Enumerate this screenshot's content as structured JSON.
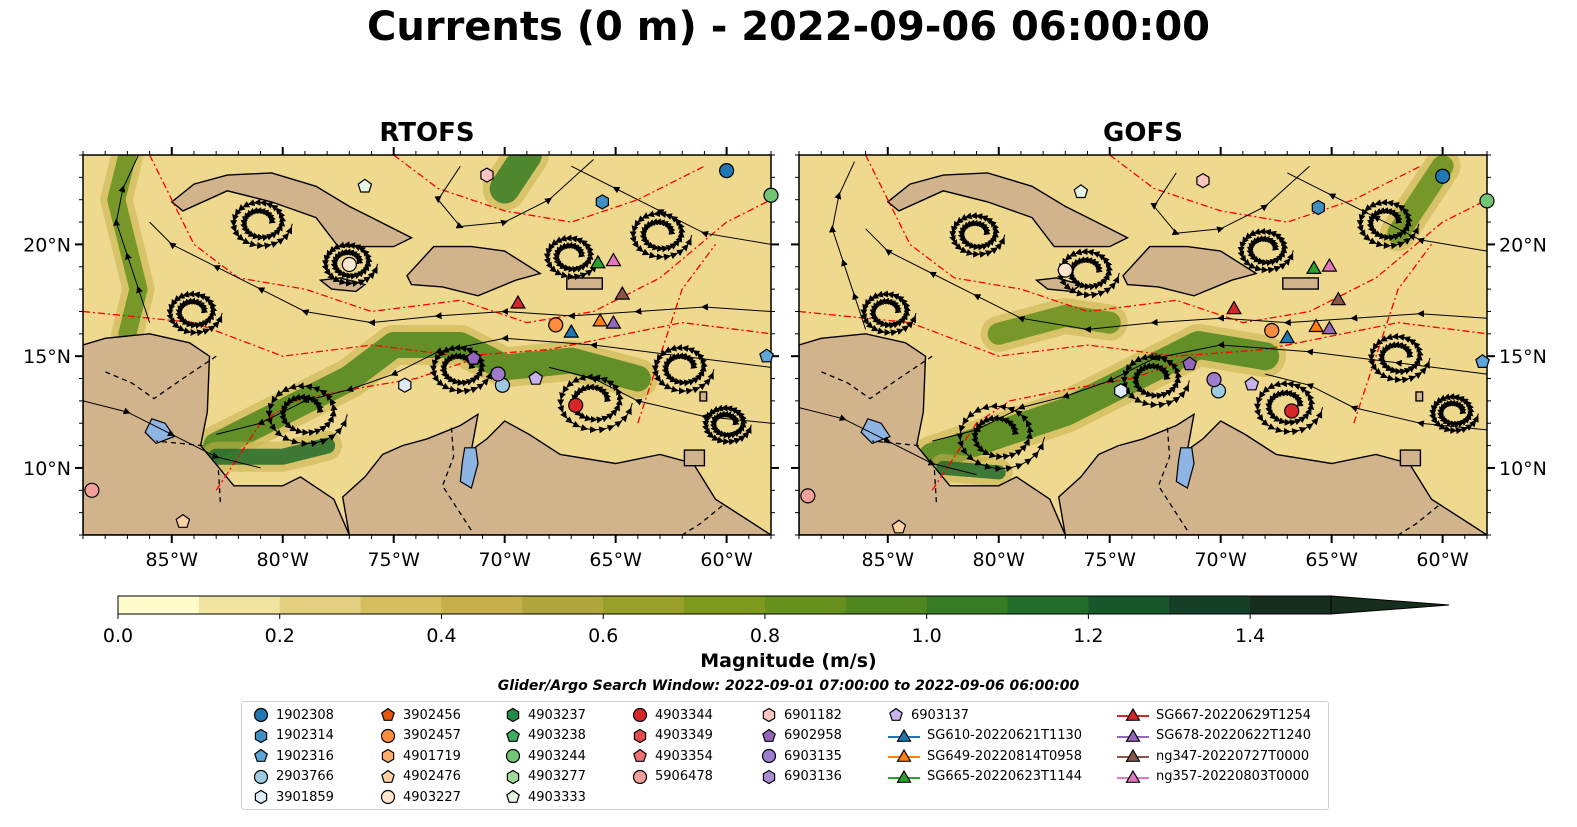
{
  "figure": {
    "suptitle": "Currents (0 m) - 2022-09-06 06:00:00",
    "search_window": "Glider/Argo Search Window: 2022-09-01 07:00:00 to 2022-09-06 06:00:00"
  },
  "panels": [
    {
      "id": "rtofs",
      "title": "RTOFS"
    },
    {
      "id": "gofs",
      "title": "GOFS"
    }
  ],
  "map": {
    "extent": {
      "lon": [
        -89,
        -58
      ],
      "lat": [
        7,
        24
      ]
    },
    "lon_ticks": [
      "85°W",
      "80°W",
      "75°W",
      "70°W",
      "65°W",
      "60°W"
    ],
    "lat_ticks": [
      "20°N",
      "15°N",
      "10°N"
    ],
    "colors": {
      "land": "#d2b48c",
      "lakes": "#8eb4e3",
      "eez": "#ff0000",
      "borders": "#000000"
    }
  },
  "colorbar": {
    "label": "Magnitude (m/s)",
    "range": [
      0,
      1.5
    ],
    "extend": "max",
    "tick_labels": [
      "0.0",
      "0.2",
      "0.4",
      "0.6",
      "0.8",
      "1.0",
      "1.2",
      "1.4"
    ],
    "colors": [
      "#fefccb",
      "#f1e4a0",
      "#e1ce7e",
      "#d5be5e",
      "#c6b04a",
      "#b0a43c",
      "#98a029",
      "#7d9a1c",
      "#66911d",
      "#4f861f",
      "#377b25",
      "#226b2b",
      "#17572b",
      "#153f27",
      "#172d1e"
    ]
  },
  "legend": {
    "columns": [
      [
        {
          "label": "1902308",
          "marker": "circle",
          "color": "#1f77b4"
        },
        {
          "label": "1902314",
          "marker": "hexagon",
          "color": "#3f8fc4"
        },
        {
          "label": "1902316",
          "marker": "pentagon",
          "color": "#5ea5d8"
        },
        {
          "label": "2903766",
          "marker": "circle",
          "color": "#9ecae1"
        },
        {
          "label": "3901859",
          "marker": "hexagon",
          "color": "#deebf7"
        }
      ],
      [
        {
          "label": "3902456",
          "marker": "pentagon",
          "color": "#e6550d"
        },
        {
          "label": "3902457",
          "marker": "circle",
          "color": "#fd8d3c"
        },
        {
          "label": "4901719",
          "marker": "hexagon",
          "color": "#fdae6b"
        },
        {
          "label": "4902476",
          "marker": "pentagon",
          "color": "#fdd0a2"
        },
        {
          "label": "4903227",
          "marker": "circle",
          "color": "#fee6ce"
        }
      ],
      [
        {
          "label": "4903237",
          "marker": "hexagon",
          "color": "#238b45"
        },
        {
          "label": "4903238",
          "marker": "pentagon",
          "color": "#41ab5d"
        },
        {
          "label": "4903244",
          "marker": "circle",
          "color": "#74c476"
        },
        {
          "label": "4903277",
          "marker": "hexagon",
          "color": "#a1d99b"
        },
        {
          "label": "4903333",
          "marker": "pentagon",
          "color": "#e5f5e0"
        }
      ],
      [
        {
          "label": "4903344",
          "marker": "circle",
          "color": "#d62728"
        },
        {
          "label": "4903349",
          "marker": "hexagon",
          "color": "#e34a4a"
        },
        {
          "label": "4903354",
          "marker": "pentagon",
          "color": "#f07070"
        },
        {
          "label": "5906478",
          "marker": "circle",
          "color": "#f4a09a"
        }
      ],
      [
        {
          "label": "6901182",
          "marker": "hexagon",
          "color": "#fcc5c0"
        },
        {
          "label": "6902958",
          "marker": "pentagon",
          "color": "#9467bd"
        },
        {
          "label": "6903135",
          "marker": "circle",
          "color": "#9f7ccc"
        },
        {
          "label": "6903136",
          "marker": "hexagon",
          "color": "#a98bd6"
        }
      ],
      [
        {
          "label": "6903137",
          "marker": "pentagon",
          "color": "#c8b4ec"
        },
        {
          "label": "SG610-20220621T1130",
          "marker": "triangle",
          "color": "#1f77b4"
        },
        {
          "label": "SG649-20220814T0958",
          "marker": "triangle",
          "color": "#ff7f0e"
        },
        {
          "label": "SG665-20220623T1144",
          "marker": "triangle",
          "color": "#2ca02c"
        }
      ],
      [
        {
          "label": "SG667-20220629T1254",
          "marker": "triangle",
          "color": "#d62728"
        },
        {
          "label": "SG678-20220622T1240",
          "marker": "triangle",
          "color": "#9467bd"
        },
        {
          "label": "ng347-20220727T0000",
          "marker": "triangle",
          "color": "#8c564b"
        },
        {
          "label": "ng357-20220803T0000",
          "marker": "triangle",
          "color": "#e377c2"
        }
      ]
    ]
  },
  "markers": [
    {
      "label": "1902308",
      "lon": -60.0,
      "lat": 23.3
    },
    {
      "label": "1902314",
      "lon": -65.6,
      "lat": 21.9
    },
    {
      "label": "1902316",
      "lon": -58.2,
      "lat": 15.0
    },
    {
      "label": "2903766",
      "lon": -70.1,
      "lat": 13.7
    },
    {
      "label": "3901859",
      "lon": -74.5,
      "lat": 13.7
    },
    {
      "label": "3902457",
      "lon": -67.7,
      "lat": 16.4
    },
    {
      "label": "4902476",
      "lon": -84.5,
      "lat": 7.6
    },
    {
      "label": "4903227",
      "lon": -77.0,
      "lat": 19.1
    },
    {
      "label": "4903244",
      "lon": -58.0,
      "lat": 22.2
    },
    {
      "label": "4903333",
      "lon": -76.3,
      "lat": 22.6
    },
    {
      "label": "4903344",
      "lon": -66.8,
      "lat": 12.8
    },
    {
      "label": "5906478",
      "lon": -88.6,
      "lat": 9.0
    },
    {
      "label": "6901182",
      "lon": -70.8,
      "lat": 23.1
    },
    {
      "label": "6902958",
      "lon": -71.4,
      "lat": 14.9
    },
    {
      "label": "6903135",
      "lon": -70.3,
      "lat": 14.2
    },
    {
      "label": "6903137",
      "lon": -68.6,
      "lat": 14.0
    },
    {
      "label": "SG610-20220621T1130",
      "lon": -67.0,
      "lat": 16.1
    },
    {
      "label": "SG649-20220814T0958",
      "lon": -65.7,
      "lat": 16.6
    },
    {
      "label": "SG665-20220623T1144",
      "lon": -65.8,
      "lat": 19.2
    },
    {
      "label": "SG667-20220629T1254",
      "lon": -69.4,
      "lat": 17.4
    },
    {
      "label": "SG678-20220622T1240",
      "lon": -65.1,
      "lat": 16.5
    },
    {
      "label": "ng347-20220727T0000",
      "lon": -64.7,
      "lat": 17.8
    },
    {
      "label": "ng357-20220803T0000",
      "lon": -65.1,
      "lat": 19.3
    }
  ]
}
